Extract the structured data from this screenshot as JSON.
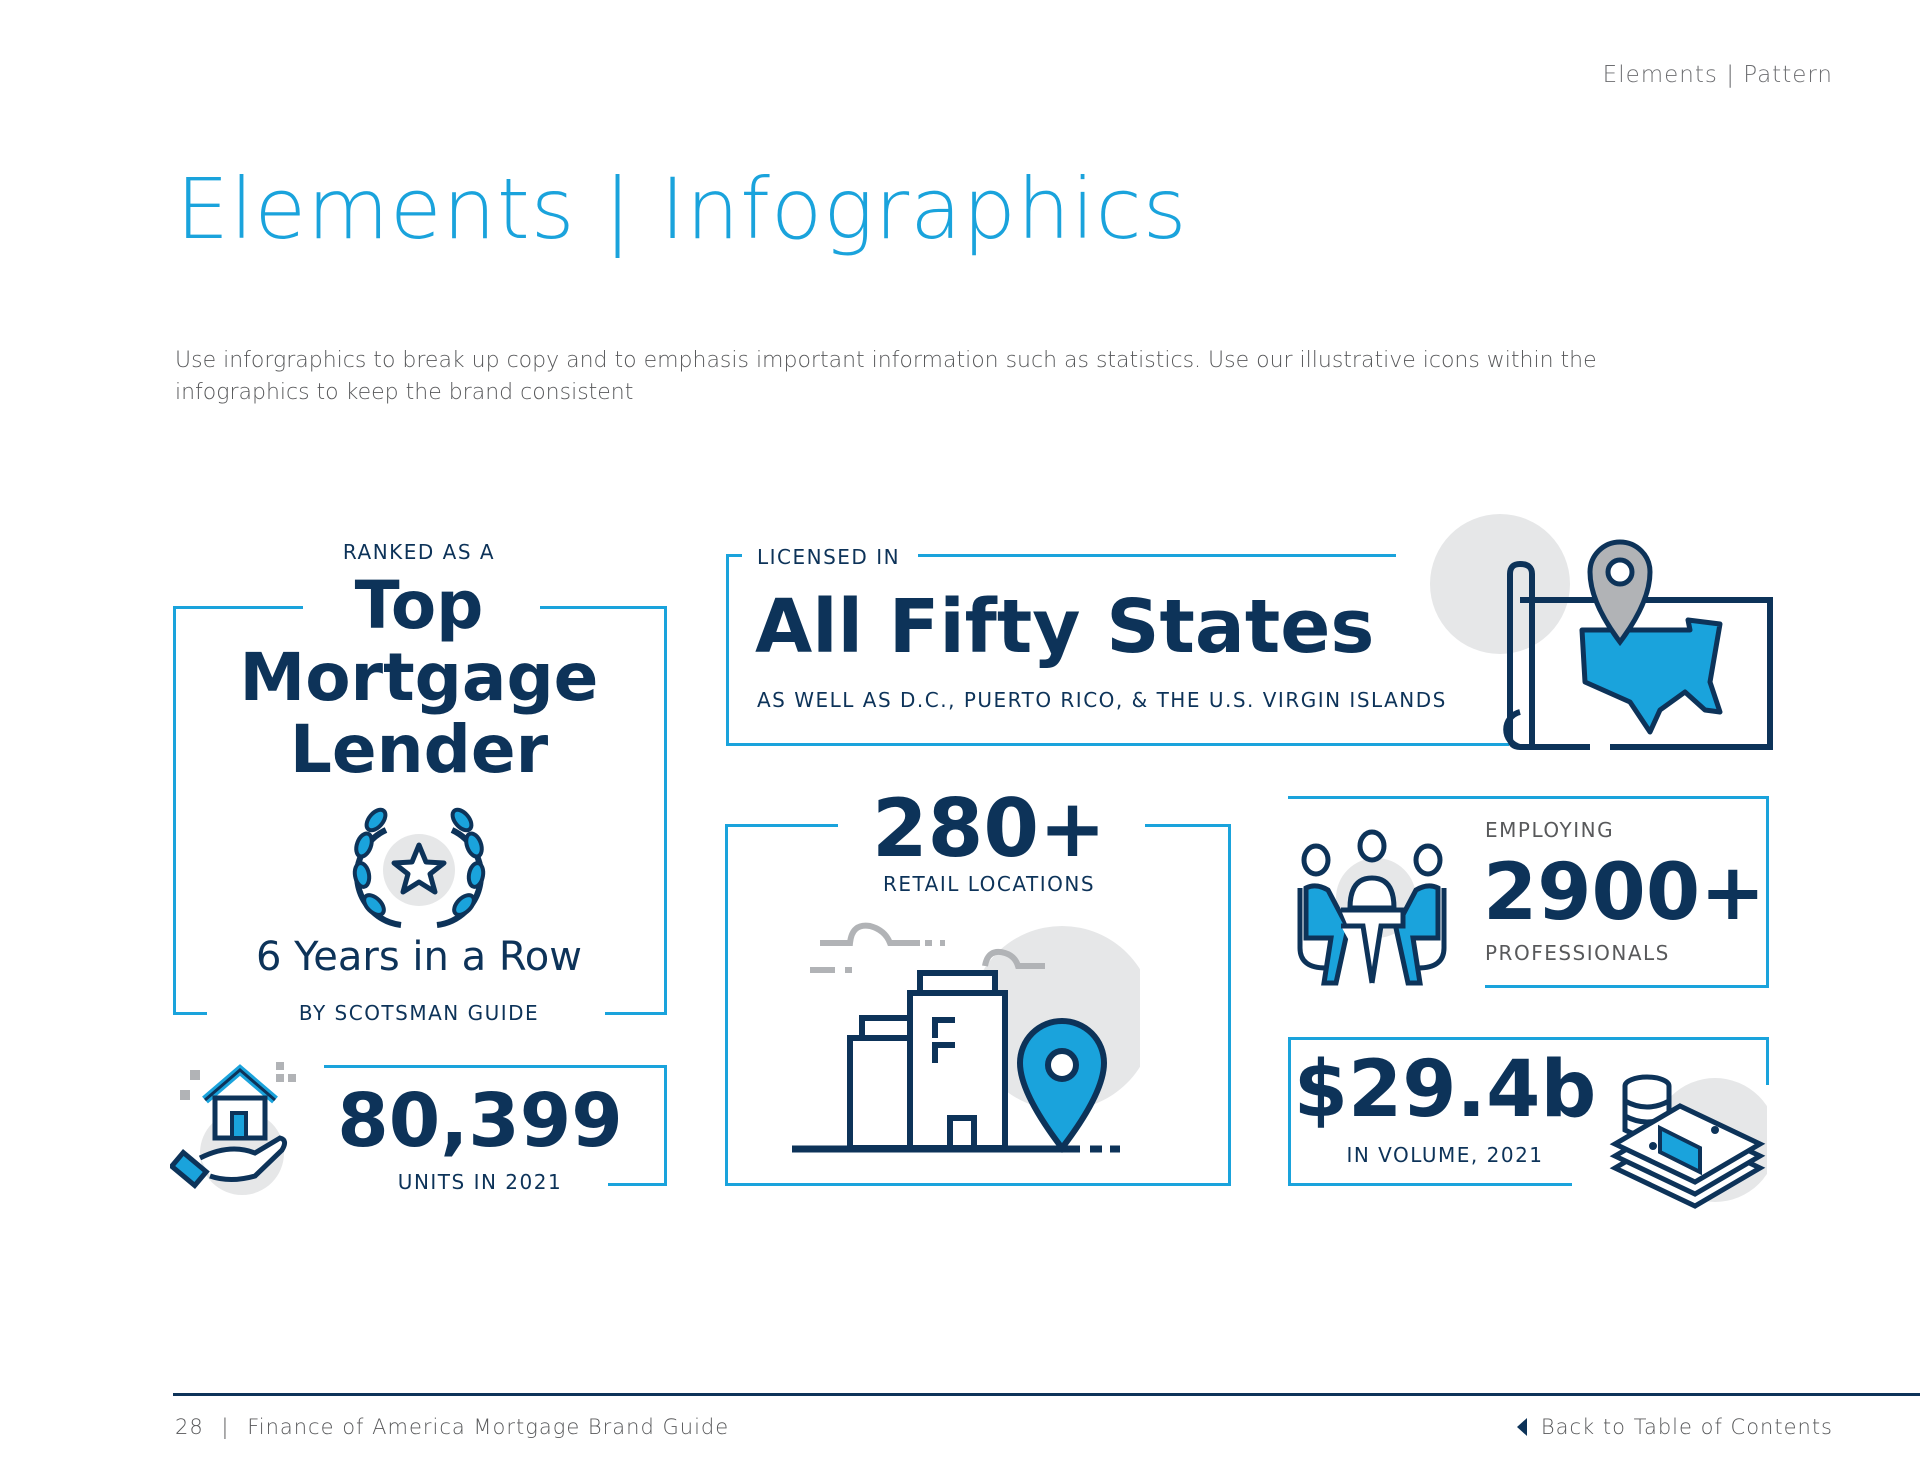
{
  "header": {
    "section": "Elements | Pattern"
  },
  "title": "Elements | Infographics",
  "description": "Use inforgraphics to break up copy and to emphasis important information such as statistics. Use our illustrative icons within the infographics to keep the brand consistent",
  "colors": {
    "accent": "#1aa3dc",
    "navy": "#0d3359",
    "gray_circle": "#e6e7e8",
    "icon_gray": "#b1b3b6"
  },
  "infographics": {
    "ranking": {
      "pre": "RANKED AS A",
      "line1": "Top",
      "line2": "Mortgage",
      "line3": "Lender",
      "streak": "6 Years in a Row",
      "source": "BY SCOTSMAN GUIDE",
      "icon": "laurel-star-icon"
    },
    "units": {
      "value": "80,399",
      "label": "UNITS IN 2021",
      "icon": "house-in-hand-icon"
    },
    "licensed": {
      "pre": "LICENSED IN",
      "value": "All Fifty States",
      "sub": "AS WELL AS D.C., PUERTO RICO, & THE U.S. VIRGIN ISLANDS",
      "icon": "us-map-pin-icon"
    },
    "retail": {
      "value": "280+",
      "label": "RETAIL LOCATIONS",
      "icon": "building-pin-icon"
    },
    "employees": {
      "pre": "EMPLOYING",
      "value": "2900+",
      "label": "PROFESSIONALS",
      "icon": "people-meeting-icon"
    },
    "volume": {
      "value": "$29.4b",
      "label": "IN VOLUME, 2021",
      "icon": "money-stack-icon"
    }
  },
  "footer": {
    "page": "28",
    "separator": "|",
    "guide": "Finance of America Mortgage Brand Guide",
    "back_link": "Back to Table of Contents"
  }
}
